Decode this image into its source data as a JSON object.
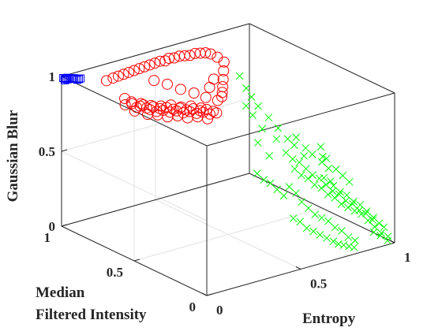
{
  "chart_data": {
    "type": "scatter",
    "title": "",
    "projection": "3d",
    "axes": {
      "x": {
        "label": "Entropy",
        "lim": [
          0,
          1
        ],
        "ticks": [
          0,
          0.5,
          1
        ],
        "tick_labels": [
          "0",
          "0.5",
          "1"
        ]
      },
      "y": {
        "label_lines": [
          "Median",
          "Filtered Intensity"
        ],
        "lim": [
          0,
          1
        ],
        "ticks": [
          0,
          0.5,
          1
        ],
        "tick_labels": [
          "0",
          "0.5",
          "1"
        ]
      },
      "z": {
        "label": "Gaussian Blur",
        "lim": [
          0,
          1
        ],
        "ticks": [
          0,
          0.5,
          1
        ],
        "tick_labels": [
          "0",
          "0.5",
          "1"
        ]
      }
    },
    "grid": true,
    "box": true,
    "series": [
      {
        "marker": "square",
        "color": "#0000ff",
        "points": [
          [
            0.005,
            0.995,
            0.99
          ],
          [
            0.008,
            0.99,
            0.985
          ],
          [
            0.012,
            0.985,
            0.99
          ],
          [
            0.016,
            0.98,
            0.995
          ],
          [
            0.02,
            0.975,
            0.99
          ],
          [
            0.024,
            0.97,
            0.995
          ],
          [
            0.03,
            0.965,
            0.99
          ],
          [
            0.035,
            0.96,
            0.995
          ],
          [
            0.04,
            0.955,
            0.99
          ],
          [
            0.045,
            0.95,
            0.985
          ],
          [
            0.05,
            0.945,
            0.99
          ],
          [
            0.055,
            0.94,
            0.995
          ],
          [
            0.01,
            0.99,
            0.975
          ],
          [
            0.02,
            0.985,
            0.98
          ]
        ]
      },
      {
        "marker": "circle",
        "color": "#ff0000",
        "points": [
          [
            0.12,
            0.72,
            0.94
          ],
          [
            0.14,
            0.7,
            0.92
          ],
          [
            0.15,
            0.71,
            0.9
          ],
          [
            0.16,
            0.69,
            0.88
          ],
          [
            0.17,
            0.68,
            0.89
          ],
          [
            0.18,
            0.67,
            0.9
          ],
          [
            0.19,
            0.66,
            0.88
          ],
          [
            0.2,
            0.65,
            0.87
          ],
          [
            0.21,
            0.64,
            0.89
          ],
          [
            0.22,
            0.63,
            0.86
          ],
          [
            0.23,
            0.62,
            0.88
          ],
          [
            0.24,
            0.61,
            0.87
          ],
          [
            0.25,
            0.6,
            0.89
          ],
          [
            0.26,
            0.59,
            0.86
          ],
          [
            0.27,
            0.58,
            0.88
          ],
          [
            0.28,
            0.57,
            0.87
          ],
          [
            0.29,
            0.56,
            0.89
          ],
          [
            0.3,
            0.55,
            0.86
          ],
          [
            0.31,
            0.54,
            0.88
          ],
          [
            0.32,
            0.53,
            0.87
          ],
          [
            0.33,
            0.52,
            0.89
          ],
          [
            0.34,
            0.51,
            0.86
          ],
          [
            0.35,
            0.5,
            0.88
          ],
          [
            0.36,
            0.49,
            0.87
          ],
          [
            0.37,
            0.48,
            0.89
          ],
          [
            0.38,
            0.47,
            0.86
          ],
          [
            0.39,
            0.46,
            0.88
          ],
          [
            0.4,
            0.45,
            0.87
          ],
          [
            0.15,
            0.69,
            0.86
          ],
          [
            0.18,
            0.64,
            0.85
          ],
          [
            0.21,
            0.61,
            0.85
          ],
          [
            0.24,
            0.58,
            0.84
          ],
          [
            0.27,
            0.55,
            0.85
          ],
          [
            0.3,
            0.52,
            0.84
          ],
          [
            0.33,
            0.49,
            0.85
          ],
          [
            0.36,
            0.46,
            0.84
          ],
          [
            0.13,
            0.73,
            0.89
          ],
          [
            0.16,
            0.66,
            0.92
          ],
          [
            0.19,
            0.63,
            0.91
          ],
          [
            0.22,
            0.6,
            0.91
          ],
          [
            0.25,
            0.57,
            0.92
          ],
          [
            0.28,
            0.54,
            0.91
          ],
          [
            0.31,
            0.51,
            0.92
          ],
          [
            0.34,
            0.48,
            0.91
          ],
          [
            0.1,
            0.82,
            1.02
          ],
          [
            0.12,
            0.8,
            1.04
          ],
          [
            0.14,
            0.79,
            1.05
          ],
          [
            0.16,
            0.78,
            1.06
          ],
          [
            0.18,
            0.77,
            1.07
          ],
          [
            0.2,
            0.76,
            1.08
          ],
          [
            0.22,
            0.75,
            1.09
          ],
          [
            0.24,
            0.74,
            1.1
          ],
          [
            0.26,
            0.73,
            1.11
          ],
          [
            0.28,
            0.72,
            1.12
          ],
          [
            0.3,
            0.71,
            1.13
          ],
          [
            0.32,
            0.7,
            1.13
          ],
          [
            0.34,
            0.7,
            1.14
          ],
          [
            0.36,
            0.69,
            1.14
          ],
          [
            0.38,
            0.68,
            1.15
          ],
          [
            0.4,
            0.67,
            1.15
          ],
          [
            0.42,
            0.66,
            1.15
          ],
          [
            0.44,
            0.65,
            1.16
          ],
          [
            0.46,
            0.64,
            1.16
          ],
          [
            0.48,
            0.63,
            1.16
          ],
          [
            0.5,
            0.62,
            1.15
          ],
          [
            0.52,
            0.6,
            1.13
          ],
          [
            0.54,
            0.58,
            1.1
          ],
          [
            0.53,
            0.57,
            1.05
          ],
          [
            0.52,
            0.56,
            1.0
          ],
          [
            0.51,
            0.55,
            0.96
          ],
          [
            0.5,
            0.54,
            0.93
          ],
          [
            0.49,
            0.53,
            0.91
          ],
          [
            0.26,
            0.7,
            1.02
          ],
          [
            0.3,
            0.66,
            1.0
          ],
          [
            0.34,
            0.62,
            0.97
          ],
          [
            0.38,
            0.58,
            0.95
          ],
          [
            0.42,
            0.55,
            0.92
          ],
          [
            0.46,
            0.52,
            0.9
          ],
          [
            0.44,
            0.55,
            0.98
          ],
          [
            0.47,
            0.56,
            1.02
          ]
        ]
      },
      {
        "marker": "x",
        "color": "#00ff00",
        "points": [
          [
            0.6,
            0.55,
            1.0
          ],
          [
            0.62,
            0.53,
            0.92
          ],
          [
            0.64,
            0.52,
            0.86
          ],
          [
            0.58,
            0.48,
            0.84
          ],
          [
            0.6,
            0.46,
            0.78
          ],
          [
            0.66,
            0.5,
            0.8
          ],
          [
            0.62,
            0.42,
            0.7
          ],
          [
            0.7,
            0.48,
            0.72
          ],
          [
            0.72,
            0.44,
            0.66
          ],
          [
            0.68,
            0.4,
            0.62
          ],
          [
            0.55,
            0.36,
            0.66
          ],
          [
            0.58,
            0.32,
            0.58
          ],
          [
            0.74,
            0.4,
            0.6
          ],
          [
            0.76,
            0.38,
            0.56
          ],
          [
            0.8,
            0.42,
            0.58
          ],
          [
            0.82,
            0.38,
            0.52
          ],
          [
            0.78,
            0.34,
            0.5
          ],
          [
            0.84,
            0.36,
            0.48
          ],
          [
            0.86,
            0.32,
            0.44
          ],
          [
            0.88,
            0.3,
            0.4
          ],
          [
            0.9,
            0.34,
            0.44
          ],
          [
            0.92,
            0.3,
            0.38
          ],
          [
            0.94,
            0.28,
            0.34
          ],
          [
            0.96,
            0.26,
            0.3
          ],
          [
            0.7,
            0.3,
            0.46
          ],
          [
            0.72,
            0.28,
            0.42
          ],
          [
            0.74,
            0.26,
            0.4
          ],
          [
            0.76,
            0.24,
            0.36
          ],
          [
            0.78,
            0.22,
            0.34
          ],
          [
            0.8,
            0.2,
            0.3
          ],
          [
            0.82,
            0.18,
            0.28
          ],
          [
            0.84,
            0.16,
            0.24
          ],
          [
            0.86,
            0.14,
            0.22
          ],
          [
            0.88,
            0.12,
            0.2
          ],
          [
            0.9,
            0.1,
            0.18
          ],
          [
            0.92,
            0.08,
            0.14
          ],
          [
            0.94,
            0.06,
            0.1
          ],
          [
            0.96,
            0.04,
            0.06
          ],
          [
            0.98,
            0.02,
            0.04
          ],
          [
            0.66,
            0.2,
            0.3
          ],
          [
            0.68,
            0.18,
            0.26
          ],
          [
            0.7,
            0.16,
            0.22
          ],
          [
            0.72,
            0.14,
            0.2
          ],
          [
            0.74,
            0.12,
            0.18
          ],
          [
            0.76,
            0.1,
            0.14
          ],
          [
            0.78,
            0.08,
            0.12
          ],
          [
            0.8,
            0.06,
            0.08
          ],
          [
            0.82,
            0.04,
            0.06
          ],
          [
            0.64,
            0.26,
            0.38
          ],
          [
            0.66,
            0.24,
            0.34
          ],
          [
            0.86,
            0.24,
            0.32
          ],
          [
            0.88,
            0.22,
            0.28
          ],
          [
            0.9,
            0.2,
            0.26
          ],
          [
            0.92,
            0.18,
            0.22
          ],
          [
            0.94,
            0.16,
            0.2
          ],
          [
            0.96,
            0.14,
            0.16
          ],
          [
            0.98,
            0.12,
            0.12
          ],
          [
            0.6,
            0.18,
            0.22
          ],
          [
            0.62,
            0.16,
            0.2
          ],
          [
            0.64,
            0.14,
            0.16
          ],
          [
            0.66,
            0.12,
            0.14
          ],
          [
            0.68,
            0.1,
            0.12
          ],
          [
            0.7,
            0.08,
            0.1
          ],
          [
            0.72,
            0.06,
            0.08
          ],
          [
            0.74,
            0.05,
            0.06
          ],
          [
            0.76,
            0.04,
            0.05
          ],
          [
            0.78,
            0.03,
            0.04
          ],
          [
            0.8,
            0.02,
            0.03
          ],
          [
            0.84,
            0.28,
            0.36
          ],
          [
            0.86,
            0.26,
            0.34
          ],
          [
            0.88,
            0.34,
            0.46
          ],
          [
            0.9,
            0.38,
            0.5
          ],
          [
            0.7,
            0.36,
            0.54
          ],
          [
            0.72,
            0.34,
            0.5
          ],
          [
            0.74,
            0.32,
            0.48
          ],
          [
            0.76,
            0.3,
            0.44
          ],
          [
            0.78,
            0.28,
            0.4
          ],
          [
            0.8,
            0.26,
            0.38
          ],
          [
            0.82,
            0.24,
            0.34
          ],
          [
            0.84,
            0.22,
            0.3
          ],
          [
            0.86,
            0.2,
            0.28
          ],
          [
            0.88,
            0.18,
            0.24
          ],
          [
            0.9,
            0.16,
            0.22
          ],
          [
            0.92,
            0.14,
            0.18
          ],
          [
            0.94,
            0.12,
            0.16
          ],
          [
            0.96,
            0.1,
            0.12
          ],
          [
            0.98,
            0.08,
            0.1
          ],
          [
            0.99,
            0.06,
            0.08
          ],
          [
            0.5,
            0.3,
            0.5
          ],
          [
            0.52,
            0.28,
            0.46
          ],
          [
            0.54,
            0.26,
            0.44
          ],
          [
            0.56,
            0.24,
            0.4
          ],
          [
            0.58,
            0.22,
            0.36
          ],
          [
            0.92,
            0.04,
            0.08
          ],
          [
            0.94,
            0.02,
            0.06
          ],
          [
            0.97,
            0.01,
            0.02
          ]
        ]
      }
    ]
  }
}
